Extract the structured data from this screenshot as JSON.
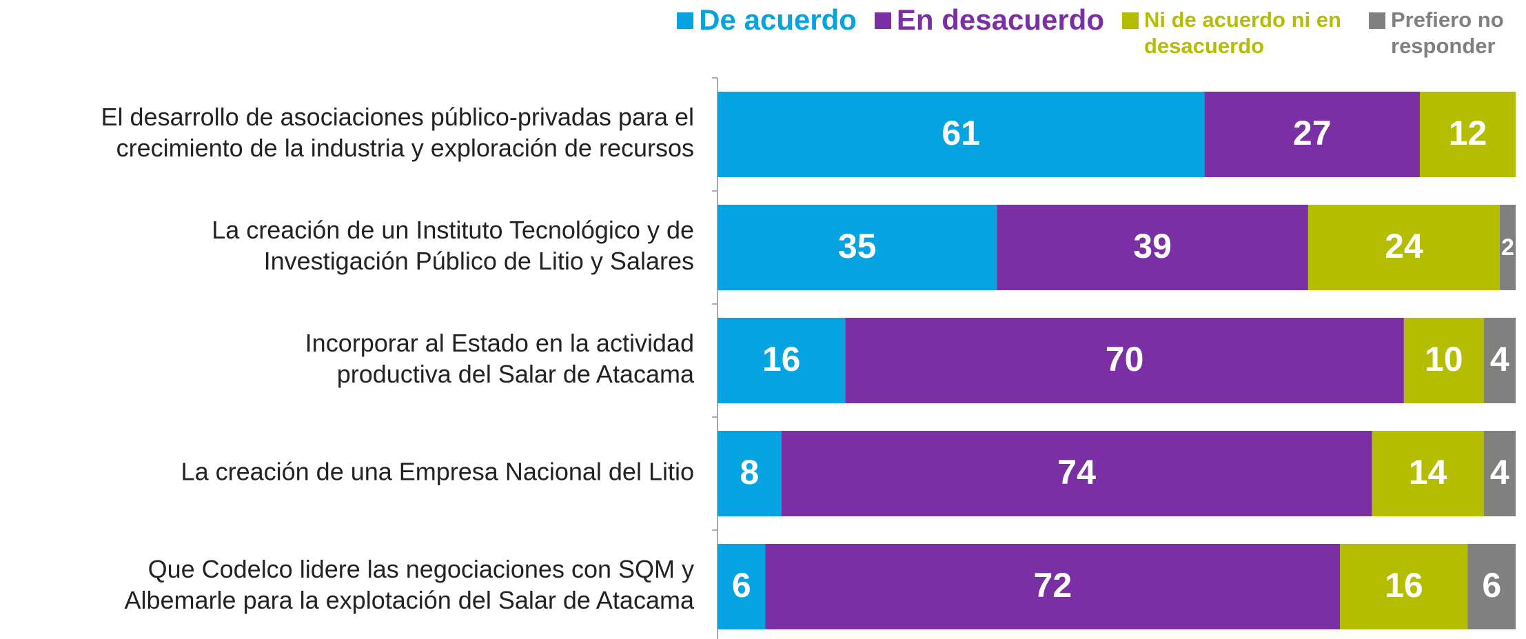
{
  "chart_data": {
    "type": "stacked-bar-horizontal",
    "categories": [
      [
        "El desarrollo de asociaciones público-privadas para el",
        "crecimiento de la industria y exploración de recursos"
      ],
      [
        "La creación de un Instituto Tecnológico y de",
        "Investigación Público de Litio y Salares"
      ],
      [
        "Incorporar al Estado en la actividad",
        "productiva del Salar de Atacama"
      ],
      [
        "La creación de una Empresa Nacional del Litio"
      ],
      [
        "Que Codelco lidere las negociaciones con SQM y",
        "Albemarle para la explotación del Salar de Atacama"
      ]
    ],
    "series": [
      {
        "name": "De acuerdo",
        "color": "#05a3e0",
        "values": [
          61,
          35,
          16,
          8,
          6
        ]
      },
      {
        "name": "En desacuerdo",
        "color": "#7b2fa5",
        "values": [
          27,
          39,
          70,
          74,
          72
        ]
      },
      {
        "name": "Ni de acuerdo ni en desacuerdo",
        "color": "#b5bd00",
        "values": [
          12,
          24,
          10,
          14,
          16
        ]
      },
      {
        "name": "Prefiero no responder",
        "color": "#808080",
        "values": [
          null,
          2,
          4,
          4,
          6
        ]
      }
    ],
    "xlim": [
      0,
      100
    ]
  }
}
